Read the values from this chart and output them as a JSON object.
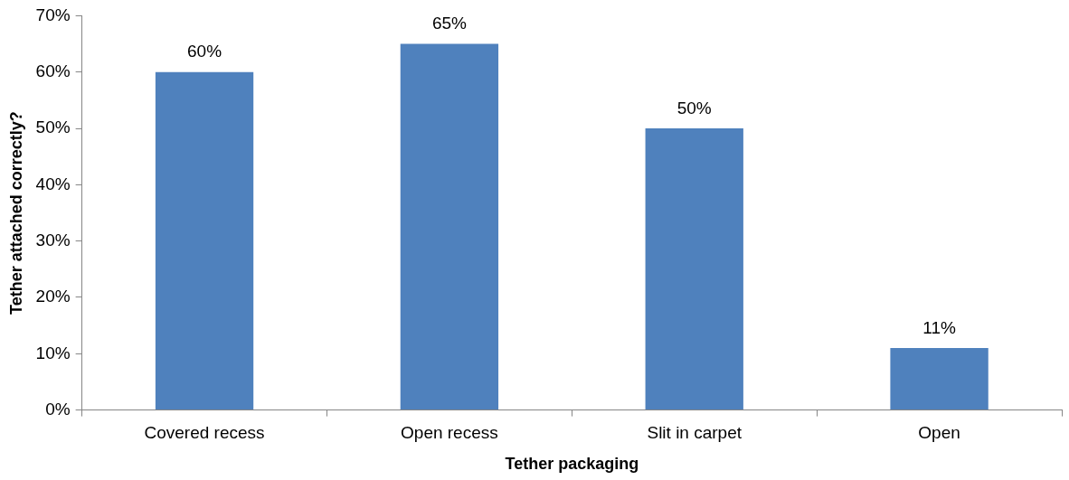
{
  "chart_data": {
    "type": "bar",
    "xlabel": "Tether packaging",
    "ylabel": "Tether attached correctly?",
    "categories": [
      "Covered recess",
      "Open recess",
      "Slit in carpet",
      "Open"
    ],
    "values": [
      60,
      65,
      50,
      11
    ],
    "value_labels": [
      "60%",
      "65%",
      "50%",
      "11%"
    ],
    "color": "#4f81bd",
    "ylim": [
      0,
      70
    ],
    "yticks": [
      {
        "value": 0,
        "label": "0%"
      },
      {
        "value": 10,
        "label": "10%"
      },
      {
        "value": 20,
        "label": "20%"
      },
      {
        "value": 30,
        "label": "30%"
      },
      {
        "value": 40,
        "label": "40%"
      },
      {
        "value": 50,
        "label": "50%"
      },
      {
        "value": 60,
        "label": "60%"
      },
      {
        "value": 70,
        "label": "70%"
      }
    ],
    "grid": false,
    "legend": false
  }
}
